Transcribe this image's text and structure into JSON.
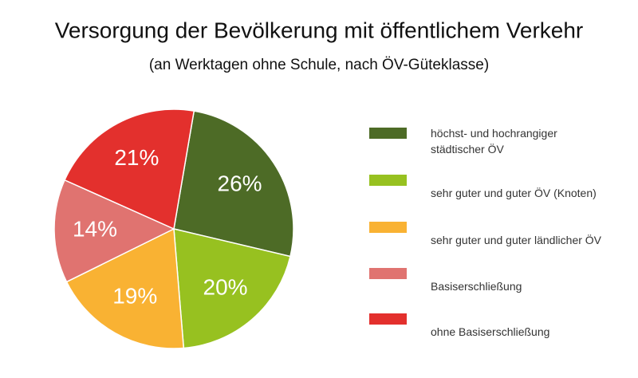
{
  "chart_data": {
    "type": "pie",
    "title": "Versorgung der Bevölkerung mit öffentlichem Verkehr",
    "subtitle": "(an Werktagen ohne Schule, nach ÖV-Güteklasse)",
    "categories": [
      "höchst- und hochrangiger\nstädtischer ÖV",
      "sehr guter und guter ÖV (Knoten)",
      "sehr guter und guter ländlicher ÖV",
      "Basiserschließung",
      "ohne Basiserschließung"
    ],
    "values": [
      26,
      20,
      19,
      14,
      21
    ],
    "value_labels": [
      "26%",
      "20%",
      "19%",
      "14%",
      "21%"
    ],
    "colors": [
      "#4d6b26",
      "#97c120",
      "#f9b233",
      "#e07370",
      "#e3302d"
    ]
  }
}
